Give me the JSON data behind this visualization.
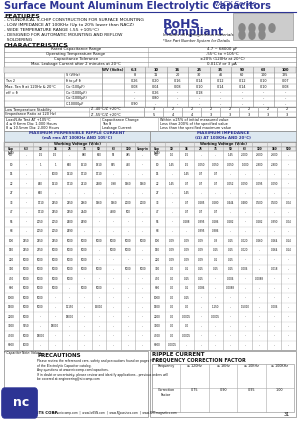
{
  "title": "Surface Mount Aluminum Electrolytic Capacitors",
  "series": "NACY Series",
  "blue": "#2d3494",
  "black": "#111111",
  "gray_bg": "#e8e8e8",
  "white": "#ffffff",
  "features": [
    "- CYLINDRICAL V-CHIP CONSTRUCTION FOR SURFACE MOUNTING",
    "- LOW IMPEDANCE AT 100KHz (Up to 20% lower than NACZ)",
    "- WIDE TEMPERATURE RANGE (-55 +105°C)",
    "- DESIGNED FOR AUTOMATIC MOUNTING AND REFLOW",
    "  SOLDERING"
  ],
  "char_table": {
    "rows": [
      [
        "Rated Capacitance Range",
        "4.7 ~ 68000 µF"
      ],
      [
        "Operating Temperature Range",
        "-55°C to +105°C"
      ],
      [
        "Capacitance Tolerance",
        "±20% (120Hz at 20°C)"
      ],
      [
        "Max. Leakage Current after 2 minutes at 20°C",
        "0.01CV or 3 µA"
      ]
    ]
  },
  "tan_voltages": [
    "WV (Volts)",
    "6.3",
    "10",
    "16",
    "25",
    "35",
    "50",
    "63",
    "100"
  ],
  "tan_rows": [
    [
      "S (V/Hz)",
      "8",
      "11",
      "20",
      "30",
      "46",
      "60",
      "100",
      "125"
    ],
    [
      "δ to µF δ",
      "0.26",
      "0.20",
      "0.16",
      "0.14",
      "0.12",
      "0.12",
      "0.10",
      "0.07"
    ],
    [
      "Co (100µF)",
      "0.08",
      "0.04",
      "0.08",
      "0.10",
      "0.14",
      "0.14",
      "0.10",
      "0.08"
    ],
    [
      "Co (1000µF)",
      "-",
      "0.26",
      "-",
      "0.18",
      "-",
      "-",
      "-",
      "-"
    ],
    [
      "Co (10000µF)",
      "0.92",
      "-",
      "0.24",
      "-",
      "-",
      "-",
      "-",
      "-"
    ]
  ],
  "lt_rows": [
    [
      "Z -40°C/Z +20°C",
      "3",
      "2",
      "2",
      "2",
      "2",
      "2",
      "2",
      "2"
    ],
    [
      "Z -55°C/Z +20°C",
      "5",
      "4",
      "4",
      "3",
      "3",
      "3",
      "3",
      "3"
    ]
  ],
  "rip_vcols": [
    "6.3",
    "10",
    "16",
    "25",
    "35",
    "50",
    "63",
    "100",
    "Snap-in"
  ],
  "rip_caps": [
    "Cap\n(µF)",
    "4.7",
    "10",
    "15",
    "22",
    "27",
    "33",
    "47",
    "56",
    "68",
    "100",
    "150",
    "220",
    "330",
    "470",
    "680",
    "1000",
    "1500",
    "2200",
    "3300",
    "4700",
    "6800"
  ],
  "rip_data": [
    [
      "-",
      "1/2",
      "1/2",
      "-",
      "880",
      "900",
      "(85)",
      "485",
      "-"
    ],
    [
      "-",
      "1",
      "1",
      "860",
      "1.510",
      "1.910",
      "(875)",
      "(490)",
      "-"
    ],
    [
      "-",
      "-",
      "1000",
      "1.310",
      "1.710",
      "1.710",
      "-",
      "-",
      "-"
    ],
    [
      "-",
      "840",
      "1.310",
      "1.710",
      "2.210",
      "2.480",
      "0.98",
      "1.460",
      "1.460"
    ],
    [
      "-",
      "860",
      "-",
      "-",
      "-",
      "-",
      "-",
      "-",
      "-"
    ],
    [
      "-",
      "1.710",
      "2.950",
      "2.950",
      "2.960",
      "1.460",
      "1.460",
      "2.000",
      "2.000"
    ],
    [
      "-",
      "1.710",
      "2.550",
      "2.550",
      "2.440",
      "-",
      "(4.980)",
      "500",
      "-"
    ],
    [
      "-",
      "2.050",
      "2.050",
      "2.600",
      "2.690",
      "-",
      "-",
      "-",
      "-"
    ],
    [
      "-",
      "2.050",
      "2.050",
      "2.690",
      "-",
      "-",
      "-",
      "-",
      "-"
    ],
    [
      "2.550",
      "2.550",
      "2.550",
      "5.000",
      "5.000",
      "5.000",
      "5.000",
      "5.000",
      "5.000"
    ],
    [
      "2.550",
      "2.750",
      "5.000",
      "5.000",
      "5.000",
      "-",
      "5.000",
      "5.000",
      "-"
    ],
    [
      "5.000",
      "5.000",
      "5.000",
      "5.000",
      "5.000",
      "-",
      "-",
      "-",
      "-"
    ],
    [
      "5.000",
      "5.000",
      "5.000",
      "5.000",
      "5.000",
      "5.000",
      "-",
      "5.000",
      "5.000"
    ],
    [
      "5.000",
      "5.000",
      "5.000",
      "5.000",
      "-",
      "-",
      "-",
      "-",
      "-"
    ],
    [
      "5.000",
      "5.000",
      "5.000",
      "-",
      "5.000",
      "5.000",
      "-",
      "-",
      "-"
    ],
    [
      "5.000",
      "5.000",
      "-",
      "-",
      "-",
      "-",
      "-",
      "-",
      "-"
    ],
    [
      "5.000",
      "5.000",
      "-",
      "11150",
      "-",
      "15010",
      "-",
      "-",
      "-"
    ],
    [
      "5.000",
      "-",
      "-",
      "18000",
      "-",
      "-",
      "-",
      "-",
      "-"
    ],
    [
      "5.150",
      "-",
      "18000",
      "-",
      "-",
      "-",
      "-",
      "-",
      "-"
    ],
    [
      "5.000",
      "18000",
      "-",
      "-",
      "-",
      "-",
      "-",
      "-",
      "-"
    ],
    [
      "1000",
      "-",
      "-",
      "-",
      "-",
      "-",
      "-",
      "-",
      "-"
    ]
  ],
  "imp_vcols": [
    "10",
    "16",
    "25",
    "35",
    "50",
    "63",
    "100",
    "160",
    "500"
  ],
  "imp_caps": [
    "Cap\n(µF)",
    "4.7",
    "10",
    "15",
    "22",
    "27",
    "33",
    "47",
    "56",
    "68",
    "100",
    "150",
    "220",
    "330",
    "470",
    "680",
    "1000",
    "1500",
    "2200",
    "3300",
    "4700",
    "6800"
  ],
  "imp_data": [
    [
      "1.-",
      "1/2",
      "-",
      "-",
      "1.45",
      "2.000",
      "2.600",
      "2.600",
      "-"
    ],
    [
      "1.45",
      "1/2",
      "0.050",
      "(0.050)",
      "0.050",
      "1.000",
      "(2.800)",
      "(2.800)",
      "-"
    ],
    [
      "-",
      "1.45",
      "0.7",
      "0.7",
      "-",
      "-",
      "-",
      "-",
      "-"
    ],
    [
      "1.45",
      "0.7",
      "0.7",
      "0.7",
      "0.052",
      "0.090",
      "0.095",
      "0.090",
      "-"
    ],
    [
      "-",
      "1.45",
      "-",
      "-",
      "-",
      "-",
      "-",
      "-",
      "-"
    ],
    [
      "-",
      "0.7",
      "0.285",
      "0.280",
      "0.444",
      "0.480",
      "0.500",
      "0.500",
      "0.04"
    ],
    [
      "-",
      "0.7",
      "0.7",
      "0.7",
      "-",
      "-",
      "-",
      "-",
      "-"
    ],
    [
      "-",
      "0.288",
      "0.395",
      "0.286",
      "0.282",
      "-",
      "0.282",
      "0.390",
      "0.04"
    ],
    [
      "-",
      "-",
      "0.395",
      "0.386",
      "-",
      "-",
      "-",
      "-",
      "-"
    ],
    [
      "0.09",
      "0.09",
      "0.09",
      "0.3",
      "0.15",
      "0.020",
      "0.260",
      "0.264",
      "0.14"
    ],
    [
      "0.09",
      "0.09",
      "0.09",
      "0.15",
      "0.15",
      "0.020",
      "-",
      "0.264",
      "0.14"
    ],
    [
      "0.09",
      "0.09",
      "0.09",
      "0.1",
      "0.15",
      "-",
      "-",
      "-",
      "-"
    ],
    [
      "0.0",
      "0.1",
      "0.15",
      "0.15",
      "0.15",
      "0.006",
      "-",
      "0.018",
      "-"
    ],
    [
      "0.0",
      "0.15",
      "0.15",
      "-",
      "0.006",
      "-",
      "0.0088",
      "-",
      "-"
    ],
    [
      "0.0",
      "0.1",
      "0.086",
      "-",
      "0.0088",
      "-",
      "-",
      "-",
      "-"
    ],
    [
      "0.0",
      "0.15",
      "-",
      "-",
      "-",
      "-",
      "-",
      "-",
      "-"
    ],
    [
      "0.0",
      "0.0",
      "-",
      "1.150",
      "-",
      "1.5010",
      "-",
      "0.006",
      "-"
    ],
    [
      "0.0",
      "0.0005",
      "-",
      "0.0005",
      "-",
      "-",
      "-",
      "-",
      "-"
    ],
    [
      "0.0",
      "0.0",
      "-",
      "-",
      "-",
      "-",
      "-",
      "-",
      "-"
    ],
    [
      "0.0",
      "0.0005",
      "-",
      "-",
      "-",
      "-",
      "-",
      "-",
      "-"
    ],
    [
      "0.0005",
      "-",
      "-",
      "-",
      "-",
      "-",
      "-",
      "-",
      "-"
    ]
  ],
  "freq_table": {
    "headers": [
      "Frequency",
      "≤ 120Hz",
      "≤ 1KHz",
      "≤ 10KHz",
      "≤ 100KHz"
    ],
    "row": [
      "Correction\nFactor",
      "0.75",
      "0.90",
      "0.95",
      "1.00"
    ]
  }
}
